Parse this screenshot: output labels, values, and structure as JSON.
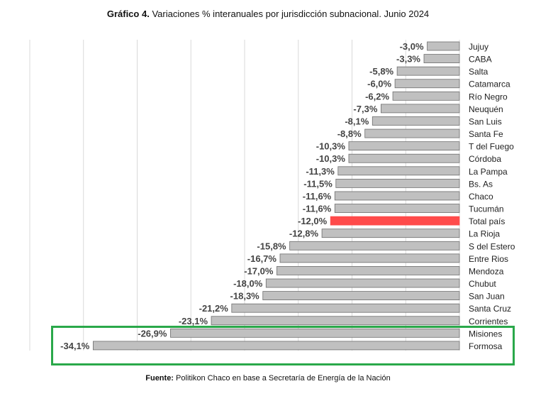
{
  "title": {
    "prefix": "Gráfico 4.",
    "text": "Variaciones % interanuales por jurisdicción subnacional. Junio 2024"
  },
  "footer": {
    "prefix": "Fuente:",
    "text": "Politikon Chaco en base a Secretaría de Energía de la Nación"
  },
  "colors": {
    "bar": "#c0c0c0",
    "bar_border": "#6e6e6e",
    "highlight_bar": "#ff4b4b",
    "highlight_box": "#2aa84a",
    "grid": "#d9d9d9"
  },
  "chart_data": {
    "type": "bar",
    "orientation": "horizontal",
    "categories": [
      "Jujuy",
      "CABA",
      "Salta",
      "Catamarca",
      "Río Negro",
      "Neuquén",
      "San Luis",
      "Santa Fe",
      "T del Fuego",
      "Córdoba",
      "La Pampa",
      "Bs. As",
      "Chaco",
      "Tucumán",
      "Total país",
      "La Rioja",
      "S del Estero",
      "Entre Rios",
      "Mendoza",
      "Chubut",
      "San Juan",
      "Santa Cruz",
      "Corrientes",
      "Misiones",
      "Formosa"
    ],
    "values": [
      -3.0,
      -3.3,
      -5.8,
      -6.0,
      -6.2,
      -7.3,
      -8.1,
      -8.8,
      -10.3,
      -10.3,
      -11.3,
      -11.5,
      -11.6,
      -11.6,
      -12.0,
      -12.8,
      -15.8,
      -16.7,
      -17.0,
      -18.0,
      -18.3,
      -21.2,
      -23.1,
      -26.9,
      -34.1
    ],
    "data_labels": [
      "-3,0%",
      "-3,3%",
      "-5,8%",
      "-6,0%",
      "-6,2%",
      "-7,3%",
      "-8,1%",
      "-8,8%",
      "-10,3%",
      "-10,3%",
      "-11,3%",
      "-11,5%",
      "-11,6%",
      "-11,6%",
      "-12,0%",
      "-12,8%",
      "-15,8%",
      "-16,7%",
      "-17,0%",
      "-18,0%",
      "-18,3%",
      "-21,2%",
      "-23,1%",
      "-26,9%",
      "-34,1%"
    ],
    "highlighted_category": "Total país",
    "boxed_categories": [
      "Misiones",
      "Formosa"
    ],
    "xlim": [
      -40,
      0
    ],
    "grid": true,
    "grid_step": 5,
    "legend": "none"
  }
}
